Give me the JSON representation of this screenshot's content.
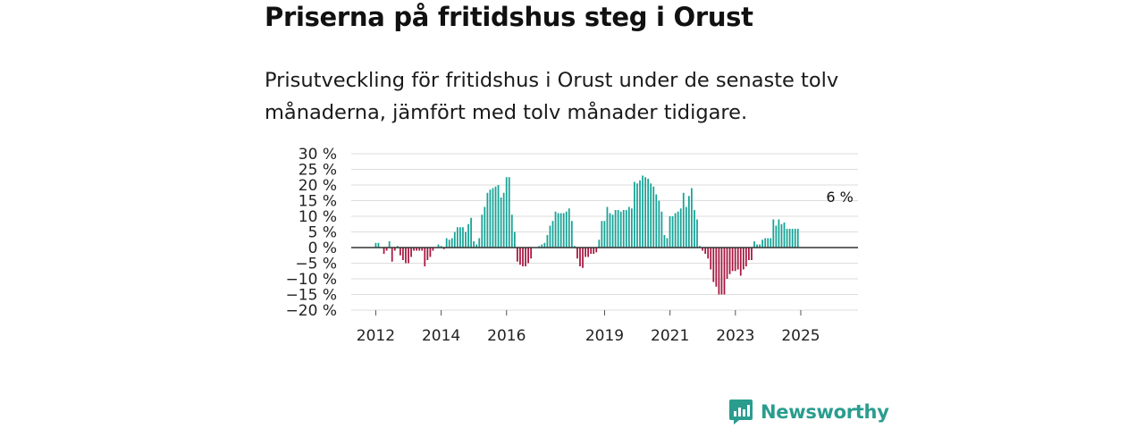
{
  "title": "Priserna på fritidshus steg i Orust",
  "subtitle": "Prisutveckling för fritidshus i Orust under de senaste tolv månaderna, jämfört med tolv månader tidigare.",
  "brand": {
    "name": "Newsworthy"
  },
  "colors": {
    "positive": "#16a396",
    "negative": "#a8173f",
    "grid": "#dddddd",
    "zero_line": "#333333",
    "brand": "#2a9d8f"
  },
  "chart_data": {
    "type": "bar",
    "ylim": [
      -20,
      30
    ],
    "xlim": [
      2011.25,
      2026.75
    ],
    "yticks": [
      30,
      25,
      20,
      15,
      10,
      5,
      0,
      -5,
      -10,
      -15,
      -20
    ],
    "ytick_labels": [
      "30 %",
      "25 %",
      "20 %",
      "15 %",
      "10 %",
      "5 %",
      "0 %",
      "−5 %",
      "−10 %",
      "−15 %",
      "−20 %"
    ],
    "xticks": [
      2012,
      2014,
      2016,
      2019,
      2021,
      2023,
      2025
    ],
    "xtick_labels": [
      "2012",
      "2014",
      "2016",
      "2019",
      "2021",
      "2023",
      "2025"
    ],
    "annotation": {
      "label": "6 %",
      "x": 2026.0,
      "value": 6
    },
    "series": [
      {
        "name": "Prisutveckling",
        "x_start": 2012.0,
        "x_step": 0.0833,
        "values": [
          1.5,
          1.5,
          0,
          -2,
          -1,
          2,
          -4.5,
          -1,
          0.5,
          -2.5,
          -4,
          -5,
          -5,
          -3,
          -1,
          -1,
          -1,
          -1,
          -6,
          -4,
          -3,
          -1,
          0,
          1,
          0.5,
          -0.5,
          3,
          2.5,
          3,
          5,
          6.5,
          6.5,
          6.5,
          5,
          7.5,
          9.5,
          2,
          1,
          3,
          10.5,
          13,
          17.5,
          18.5,
          19,
          19.5,
          20,
          16,
          17.5,
          22.5,
          22.5,
          10.5,
          5,
          -4.5,
          -5.5,
          -6,
          -6,
          -5,
          -3.5,
          null,
          null,
          0.5,
          1,
          1.5,
          4,
          7,
          8.5,
          11.5,
          11,
          11,
          11,
          11.5,
          12.5,
          8.5,
          0.5,
          -3.5,
          -6,
          -6.5,
          -3,
          -3,
          -2,
          -2,
          -1.5,
          2.5,
          8.5,
          8.5,
          13,
          11,
          10.5,
          12,
          12,
          11.5,
          12,
          12,
          13,
          12.5,
          21,
          20.5,
          21.5,
          23,
          22.5,
          22,
          20.5,
          19.5,
          17,
          15,
          11.5,
          4,
          3,
          10,
          10,
          11,
          11.5,
          12.5,
          17.5,
          13,
          16.5,
          19,
          12,
          9,
          0.5,
          -1,
          -2,
          -3.5,
          -7,
          -11,
          -12.5,
          -15,
          -15,
          -15,
          -10,
          -8.5,
          -7.5,
          -7.5,
          -7,
          -9,
          -7,
          -6,
          -4,
          -4,
          2,
          1,
          1,
          2.5,
          3,
          3,
          3,
          9,
          7,
          9,
          7.5,
          8,
          6,
          6,
          6,
          6,
          6
        ]
      }
    ]
  }
}
